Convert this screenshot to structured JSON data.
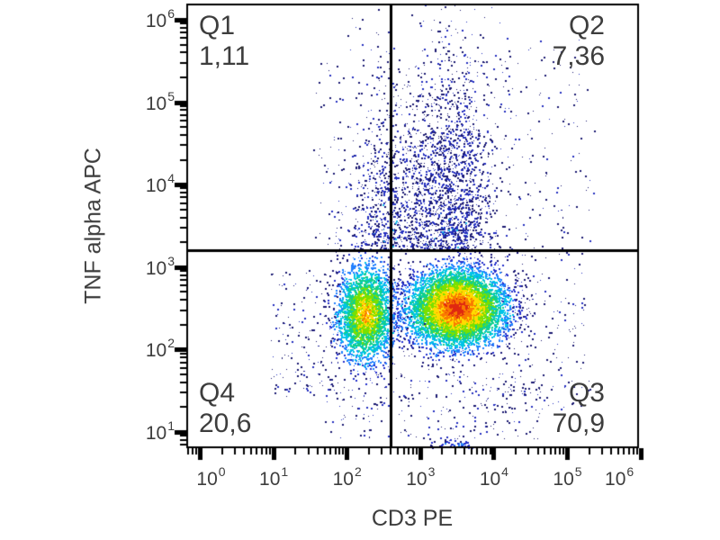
{
  "figure": {
    "background": "#ffffff",
    "axis_color": "#000000",
    "text_color": "#3d3d3d"
  },
  "chart_data": {
    "type": "scatter",
    "subtype": "flow-cytometry pseudocolor density dot plot with quadrant gate",
    "title": "",
    "xlabel": "CD3 PE",
    "ylabel": "TNF alpha APC",
    "x_scale": "log10",
    "y_scale": "log10",
    "tick_base": "10",
    "x_tick_decades": [
      0,
      1,
      2,
      3,
      4,
      5,
      6
    ],
    "y_tick_decades": [
      1,
      2,
      3,
      4,
      5,
      6
    ],
    "x_range_log10": [
      -0.18,
      5.98
    ],
    "y_range_log10": [
      0.8,
      6.2
    ],
    "gates": {
      "x_threshold_log10": 2.6,
      "y_threshold_log10": 3.2
    },
    "quadrant_stats": [
      {
        "name": "Q1",
        "value": "1,11",
        "position": "top-left"
      },
      {
        "name": "Q2",
        "value": "7,36",
        "position": "top-right"
      },
      {
        "name": "Q3",
        "value": "70,9",
        "position": "bottom-right"
      },
      {
        "name": "Q4",
        "value": "20,6",
        "position": "bottom-left"
      }
    ],
    "populations": [
      {
        "id": "cd3pos-tnfneg-main-blob",
        "kind": "blob",
        "log_x": 3.49,
        "log_y": 2.51,
        "sigma_x": 0.34,
        "sigma_y": 0.24,
        "n": 6500,
        "peak_level": 0
      },
      {
        "id": "cd3neg-tnfneg-blob",
        "kind": "blob",
        "log_x": 2.25,
        "log_y": 2.44,
        "sigma_x": 0.2,
        "sigma_y": 0.31,
        "n": 2600,
        "peak_level": 1.7
      },
      {
        "id": "cd3pos-tnfpos-column",
        "kind": "column",
        "log_x": 3.38,
        "sigma_x": 0.33,
        "base_log_y": 3.2,
        "span_y": 1.15,
        "n": 1900
      },
      {
        "id": "cd3neg-tnfpos-column",
        "kind": "column",
        "log_x": 2.52,
        "sigma_x": 0.27,
        "base_log_y": 3.2,
        "span_y": 1.09,
        "n": 750
      },
      {
        "id": "halo-left-low",
        "kind": "uniform",
        "x0": 0.96,
        "x1": 1.94,
        "y0": 1.44,
        "y1": 2.97,
        "n": 170
      },
      {
        "id": "halo-right-low",
        "kind": "uniform",
        "x0": 4.08,
        "x1": 5.31,
        "y0": 1.27,
        "y1": 3.18,
        "n": 170
      },
      {
        "id": "halo-bottom",
        "kind": "uniform",
        "x0": 1.69,
        "x1": 4.63,
        "y0": 0.91,
        "y1": 1.71,
        "n": 260
      },
      {
        "id": "halo-upper-right",
        "kind": "uniform",
        "x0": 4.08,
        "x1": 5.37,
        "y0": 3.18,
        "y1": 5.8,
        "n": 130
      },
      {
        "id": "halo-upper-left",
        "kind": "uniform",
        "x0": 1.51,
        "x1": 1.94,
        "y0": 3.18,
        "y1": 5.59,
        "n": 45
      },
      {
        "id": "axis-floor-pile",
        "kind": "blob",
        "log_x": 3.47,
        "log_y": 0.86,
        "sigma_x": 0.18,
        "sigma_y": 0.03,
        "n": 55,
        "peak_level": 6.5
      }
    ],
    "colors": {
      "density_ramp": [
        "#e02810",
        "#fa7a00",
        "#ffdc00",
        "#7ae000",
        "#12d08a",
        "#00c4e8",
        "#2080ff",
        "#2430cc",
        "#1b1878"
      ],
      "dot_navy": "#1c1a72",
      "dot_blue": "#2530c0",
      "dot_cyan": "#18b8e8"
    },
    "legend": "none",
    "grid": "off"
  }
}
